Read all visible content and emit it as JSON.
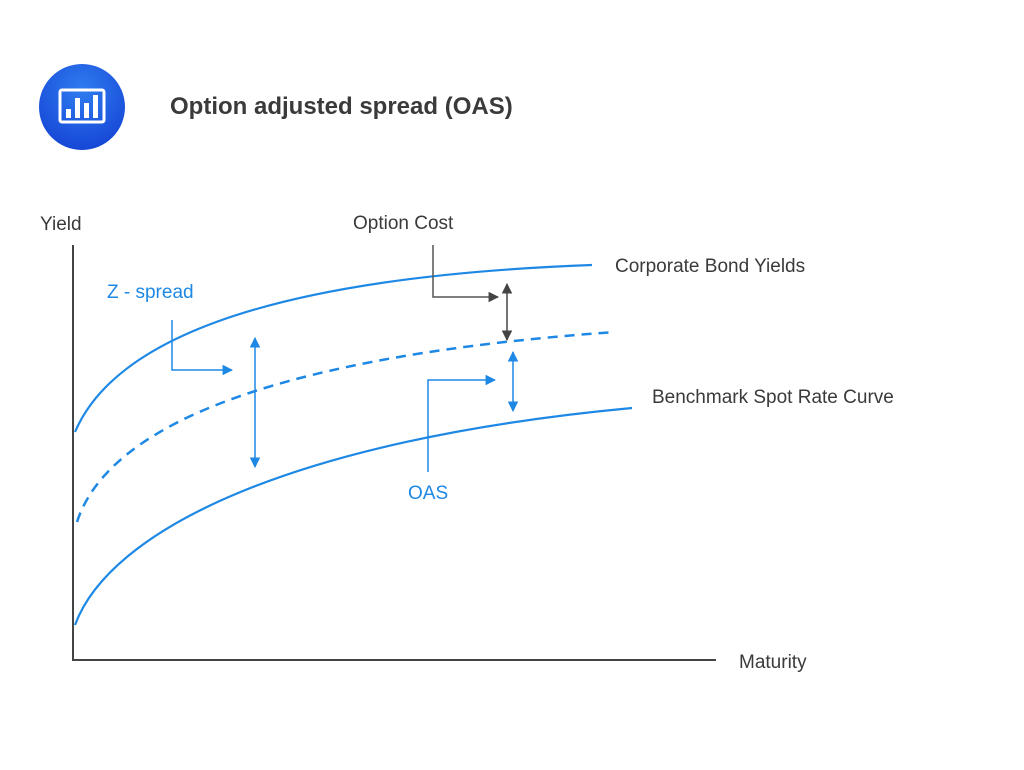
{
  "title": "Option adjusted spread (OAS)",
  "icon": "bar-chart-icon",
  "colors": {
    "accent": "#1e88e5",
    "dark": "#555555",
    "icon_bg": "#1a5fe0"
  },
  "axes": {
    "y_label": "Yield",
    "x_label": "Maturity"
  },
  "labels": {
    "option_cost": "Option Cost",
    "corporate": "Corporate Bond Yields",
    "z_spread": "Z - spread",
    "benchmark": "Benchmark Spot Rate Curve",
    "oas": "OAS"
  }
}
